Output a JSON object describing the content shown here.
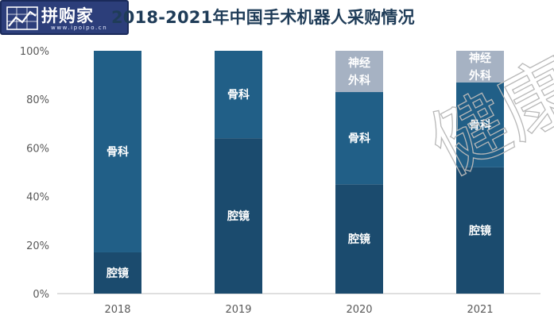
{
  "logo": {
    "name": "拼购家",
    "url": "www.ipoipo.cn"
  },
  "title": "2018-2021年中国手术机器人采购情况",
  "watermark": "健康",
  "chart_data": {
    "type": "bar",
    "stacked": true,
    "categories": [
      "2018",
      "2019",
      "2020",
      "2021"
    ],
    "series": [
      {
        "name": "腔镜",
        "values": [
          17,
          64,
          45,
          52
        ],
        "color": "#1b4b6e",
        "labels": [
          "腔镜",
          "腔镜",
          "腔镜",
          "腔镜"
        ]
      },
      {
        "name": "骨科",
        "values": [
          83,
          36,
          38,
          35
        ],
        "color": "#215f87",
        "labels": [
          "骨科",
          "骨科",
          "骨科",
          "骨科"
        ]
      },
      {
        "name": "神经外科",
        "values": [
          0,
          0,
          17,
          13
        ],
        "color": "#a6b2c3",
        "labels": [
          "",
          "",
          "神经外科",
          "神经外科"
        ]
      }
    ],
    "ylim": [
      0,
      100
    ],
    "yticks": [
      "0%",
      "20%",
      "40%",
      "60%",
      "80%",
      "100%"
    ],
    "grid": false,
    "legend": "none"
  }
}
